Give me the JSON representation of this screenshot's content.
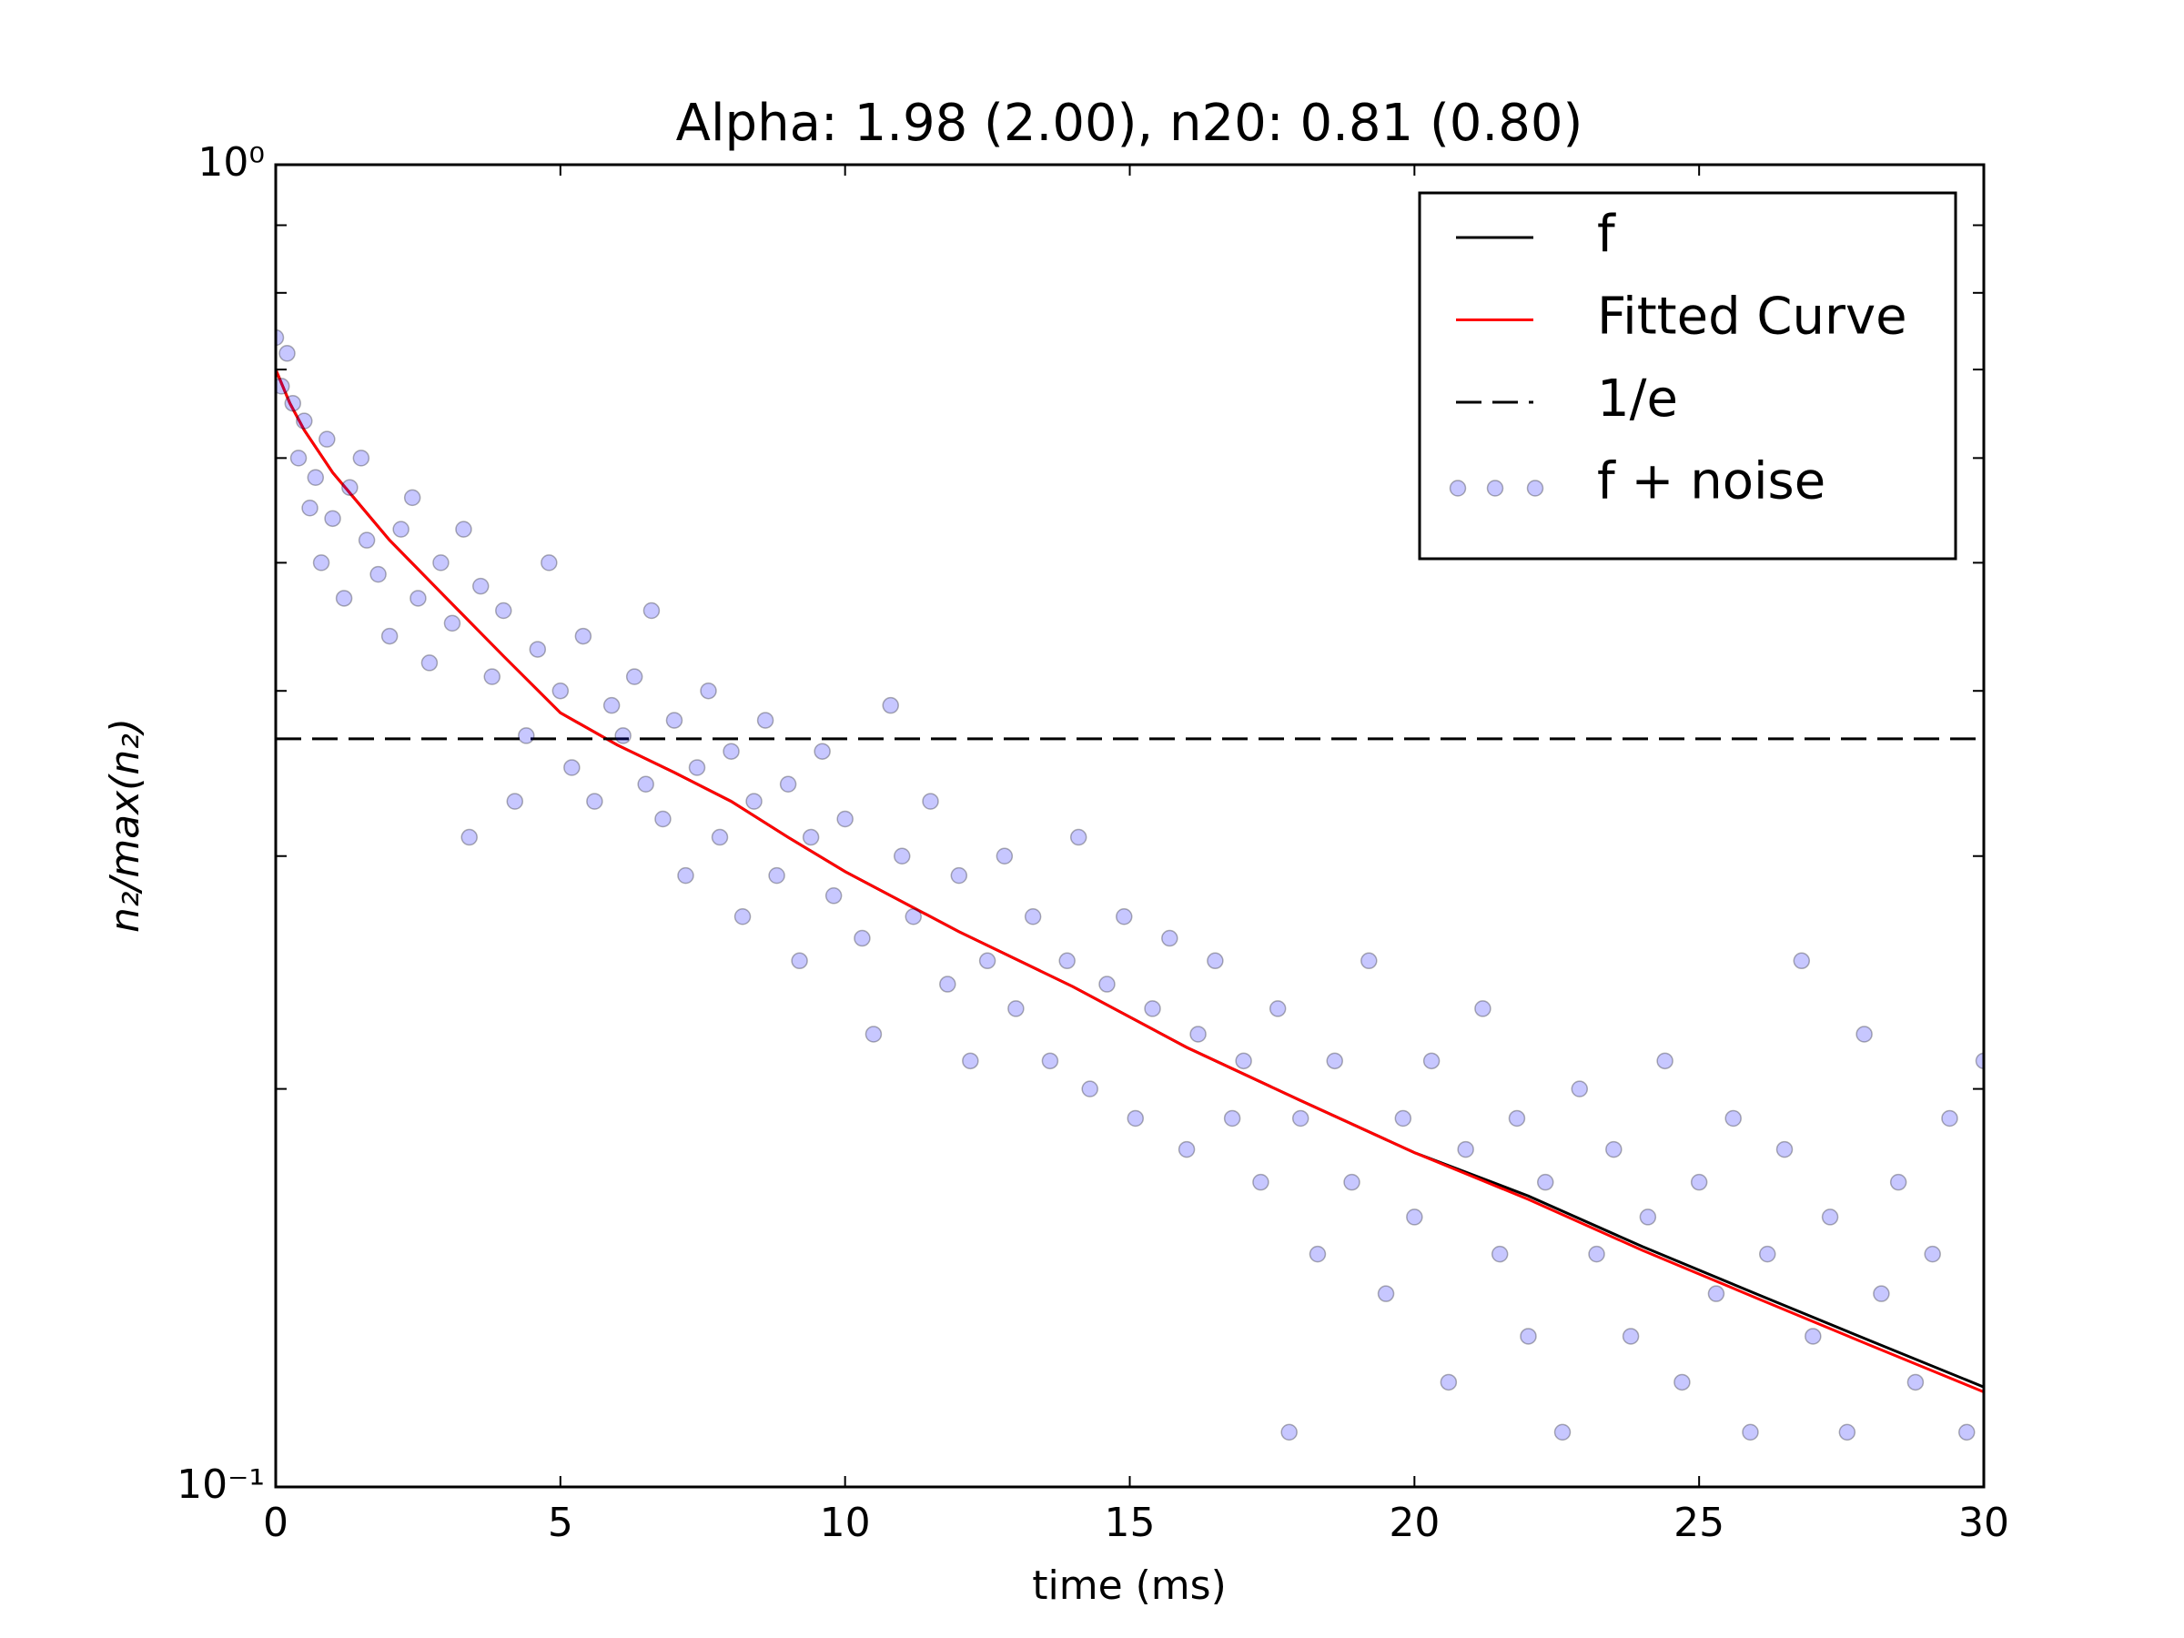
{
  "chart_data": {
    "type": "scatter",
    "title": "Alpha: 1.98 (2.00), n20: 0.81 (0.80)",
    "x_label": "time (ms)",
    "y_label": "n₂/max(n₂)",
    "xlim": [
      0,
      30
    ],
    "xticks": [
      0,
      5,
      10,
      15,
      20,
      25,
      30
    ],
    "ylim": [
      0.1,
      1
    ],
    "yticks": [
      {
        "value": 0.1,
        "label": "10⁻¹"
      },
      {
        "value": 1,
        "label": "10⁰"
      }
    ],
    "yminorticks": [
      0.2,
      0.3,
      0.4,
      0.5,
      0.6,
      0.7,
      0.8,
      0.9
    ],
    "yscale": "log",
    "legend": "upper right",
    "series": [
      {
        "name": "f",
        "kind": "line",
        "color": "#000000",
        "x": [
          0,
          0.25,
          0.5,
          1,
          2,
          3,
          4,
          5,
          6,
          7,
          8,
          9,
          10,
          12,
          14,
          16,
          18,
          20,
          22,
          24,
          26,
          28,
          30
        ],
        "values": [
          0.7,
          0.66,
          0.63,
          0.585,
          0.52,
          0.47,
          0.425,
          0.385,
          0.364,
          0.347,
          0.33,
          0.31,
          0.292,
          0.263,
          0.239,
          0.215,
          0.196,
          0.179,
          0.166,
          0.152,
          0.14,
          0.129,
          0.119
        ]
      },
      {
        "name": "Fitted Curve",
        "kind": "line",
        "color": "#ff0000",
        "x": [
          0,
          0.25,
          0.5,
          1,
          2,
          3,
          4,
          5,
          6,
          7,
          8,
          9,
          10,
          12,
          14,
          16,
          18,
          20,
          22,
          24,
          26,
          28,
          30
        ],
        "values": [
          0.7,
          0.66,
          0.63,
          0.585,
          0.52,
          0.47,
          0.425,
          0.385,
          0.364,
          0.347,
          0.33,
          0.31,
          0.292,
          0.263,
          0.239,
          0.215,
          0.196,
          0.179,
          0.165,
          0.151,
          0.139,
          0.128,
          0.118
        ]
      },
      {
        "name": "1/e",
        "kind": "hline",
        "color": "#000000",
        "dashed": true,
        "value": 0.368
      },
      {
        "name": "f + noise",
        "kind": "scatter",
        "color": "#0000ff",
        "x": [
          0,
          0.1,
          0.2,
          0.3,
          0.4,
          0.5,
          0.6,
          0.7,
          0.8,
          0.9,
          1.0,
          1.2,
          1.3,
          1.5,
          1.6,
          1.8,
          2.0,
          2.2,
          2.4,
          2.5,
          2.7,
          2.9,
          3.1,
          3.3,
          3.4,
          3.6,
          3.8,
          4.0,
          4.2,
          4.4,
          4.6,
          4.8,
          5.0,
          5.2,
          5.4,
          5.6,
          5.9,
          6.1,
          6.3,
          6.5,
          6.6,
          6.8,
          7.0,
          7.2,
          7.4,
          7.6,
          7.8,
          8.0,
          8.2,
          8.4,
          8.6,
          8.8,
          9.0,
          9.2,
          9.4,
          9.6,
          9.8,
          10.0,
          10.3,
          10.5,
          10.8,
          11.0,
          11.2,
          11.5,
          11.8,
          12.0,
          12.2,
          12.5,
          12.8,
          13.0,
          13.3,
          13.6,
          13.9,
          14.1,
          14.3,
          14.6,
          14.9,
          15.1,
          15.4,
          15.7,
          16.0,
          16.2,
          16.5,
          16.8,
          17.0,
          17.3,
          17.6,
          17.8,
          18.0,
          18.3,
          18.6,
          18.9,
          19.2,
          19.5,
          19.8,
          20.0,
          20.3,
          20.6,
          20.9,
          21.2,
          21.5,
          21.8,
          22.0,
          22.3,
          22.6,
          22.9,
          23.2,
          23.5,
          23.8,
          24.1,
          24.4,
          24.7,
          25.0,
          25.3,
          25.6,
          25.9,
          26.2,
          26.5,
          26.8,
          27.0,
          27.3,
          27.6,
          27.9,
          28.2,
          28.5,
          28.8,
          29.1,
          29.4,
          29.7,
          30.0
        ],
        "values": [
          0.74,
          0.68,
          0.72,
          0.66,
          0.6,
          0.64,
          0.55,
          0.58,
          0.5,
          0.62,
          0.54,
          0.47,
          0.57,
          0.6,
          0.52,
          0.49,
          0.44,
          0.53,
          0.56,
          0.47,
          0.42,
          0.5,
          0.45,
          0.53,
          0.31,
          0.48,
          0.41,
          0.46,
          0.33,
          0.37,
          0.43,
          0.5,
          0.4,
          0.35,
          0.44,
          0.33,
          0.39,
          0.37,
          0.41,
          0.34,
          0.46,
          0.32,
          0.38,
          0.29,
          0.35,
          0.4,
          0.31,
          0.36,
          0.27,
          0.33,
          0.38,
          0.29,
          0.34,
          0.25,
          0.31,
          0.36,
          0.28,
          0.32,
          0.26,
          0.22,
          0.39,
          0.3,
          0.27,
          0.33,
          0.24,
          0.29,
          0.21,
          0.25,
          0.3,
          0.23,
          0.27,
          0.21,
          0.25,
          0.31,
          0.2,
          0.24,
          0.27,
          0.19,
          0.23,
          0.26,
          0.18,
          0.22,
          0.25,
          0.19,
          0.21,
          0.17,
          0.23,
          0.11,
          0.19,
          0.15,
          0.21,
          0.17,
          0.25,
          0.14,
          0.19,
          0.16,
          0.21,
          0.12,
          0.18,
          0.23,
          0.15,
          0.19,
          0.13,
          0.17,
          0.11,
          0.2,
          0.15,
          0.18,
          0.13,
          0.16,
          0.21,
          0.12,
          0.17,
          0.14,
          0.19,
          0.11,
          0.15,
          0.18,
          0.25,
          0.13,
          0.16,
          0.11,
          0.22,
          0.14,
          0.17,
          0.12,
          0.15,
          0.19,
          0.11,
          0.21
        ]
      }
    ]
  }
}
